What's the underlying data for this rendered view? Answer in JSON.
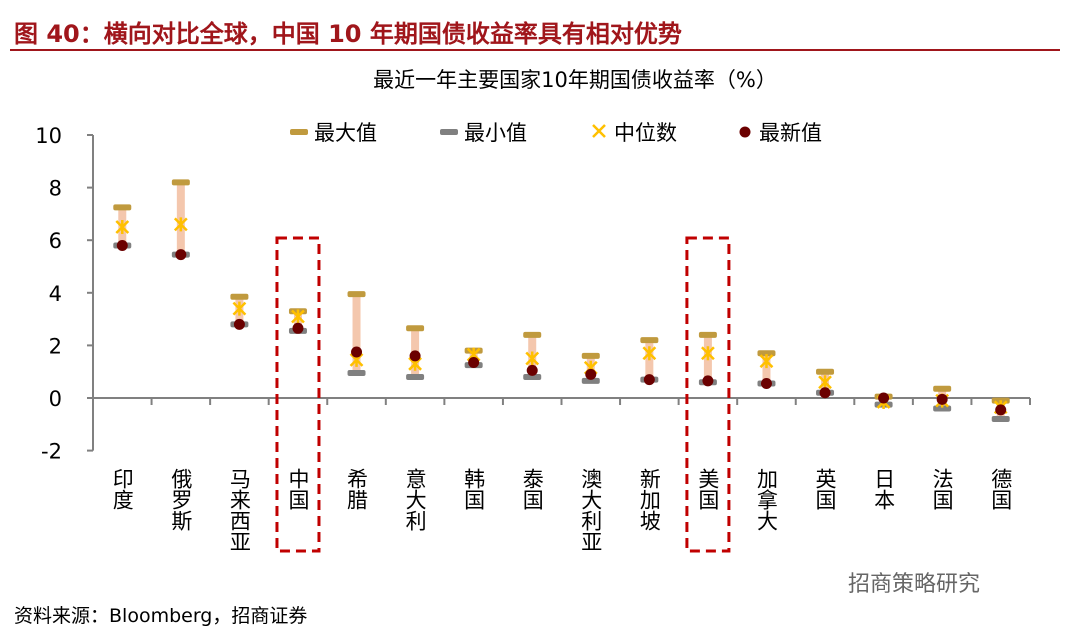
{
  "figure_title": "图 40：横向对比全球，中国 10 年期国债收益率具有相对优势",
  "source": "资料来源：Bloomberg，招商证券",
  "watermark": "招商策略研究",
  "colors": {
    "max": "#c09a3e",
    "min": "#808080",
    "median": "#ffc000",
    "latest": "#6b0000",
    "range": "#f4c7ad",
    "highlight": "#c00000",
    "axis": "#808080"
  },
  "chart_data": {
    "type": "range-dot",
    "title": "最近一年主要国家10年期国债收益率（%）",
    "xlabel": "",
    "ylabel": "",
    "ylim": [
      -2,
      10
    ],
    "yticks": [
      "-2",
      "0",
      "2",
      "4",
      "6",
      "8",
      "10"
    ],
    "legend_position": "top",
    "grid": false,
    "categories": [
      "印度",
      "俄罗斯",
      "马来西亚",
      "中国",
      "希腊",
      "意大利",
      "韩国",
      "泰国",
      "澳大利亚",
      "新加坡",
      "美国",
      "加拿大",
      "英国",
      "日本",
      "法国",
      "德国"
    ],
    "highlighted": [
      "中国",
      "美国"
    ],
    "series": [
      {
        "name": "最大值",
        "values": [
          7.25,
          8.2,
          3.85,
          3.3,
          3.95,
          2.65,
          1.8,
          2.4,
          1.6,
          2.2,
          2.4,
          1.7,
          1.0,
          0.05,
          0.35,
          -0.1
        ]
      },
      {
        "name": "最小值",
        "values": [
          5.8,
          5.45,
          2.8,
          2.55,
          0.95,
          0.8,
          1.25,
          0.8,
          0.65,
          0.7,
          0.6,
          0.55,
          0.2,
          -0.25,
          -0.4,
          -0.8
        ]
      },
      {
        "name": "中位数",
        "values": [
          6.5,
          6.6,
          3.4,
          3.1,
          1.45,
          1.3,
          1.65,
          1.5,
          1.15,
          1.7,
          1.7,
          1.4,
          0.6,
          -0.15,
          -0.1,
          -0.35
        ]
      },
      {
        "name": "最新值",
        "values": [
          5.8,
          5.45,
          2.8,
          2.65,
          1.75,
          1.6,
          1.35,
          1.05,
          0.9,
          0.7,
          0.65,
          0.55,
          0.2,
          0.0,
          -0.05,
          -0.45
        ]
      }
    ]
  }
}
